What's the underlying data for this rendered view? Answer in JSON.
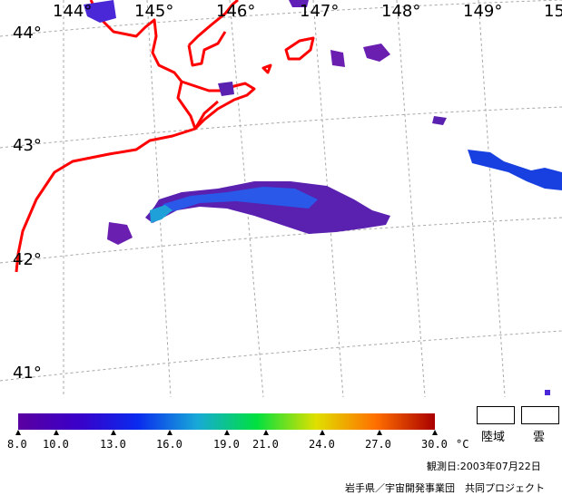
{
  "map": {
    "longitude_labels": [
      "144°",
      "145°",
      "146°",
      "147°",
      "148°",
      "149°",
      "15"
    ],
    "latitude_labels": [
      "44°",
      "43°",
      "42°",
      "41°"
    ]
  },
  "legend": {
    "ticks": [
      "8.0",
      "10.0",
      "13.0",
      "16.0",
      "19.0",
      "21.0",
      "24.0",
      "27.0",
      "30.0"
    ],
    "unit": "°C",
    "colors": [
      "#5a00a0",
      "#3a00c8",
      "#0a2aee",
      "#18a8d8",
      "#00e040",
      "#e0e000",
      "#ff7000",
      "#aa0000"
    ],
    "land_label": "陸域",
    "cloud_label": "雲"
  },
  "footer": {
    "observation_date": "観測日:2003年07月22日",
    "credit": "岩手県／宇宙開発事業団　共同プロジェクト"
  },
  "colors": {
    "coastline": "#ff0000",
    "grid": "#a0a0a0"
  }
}
